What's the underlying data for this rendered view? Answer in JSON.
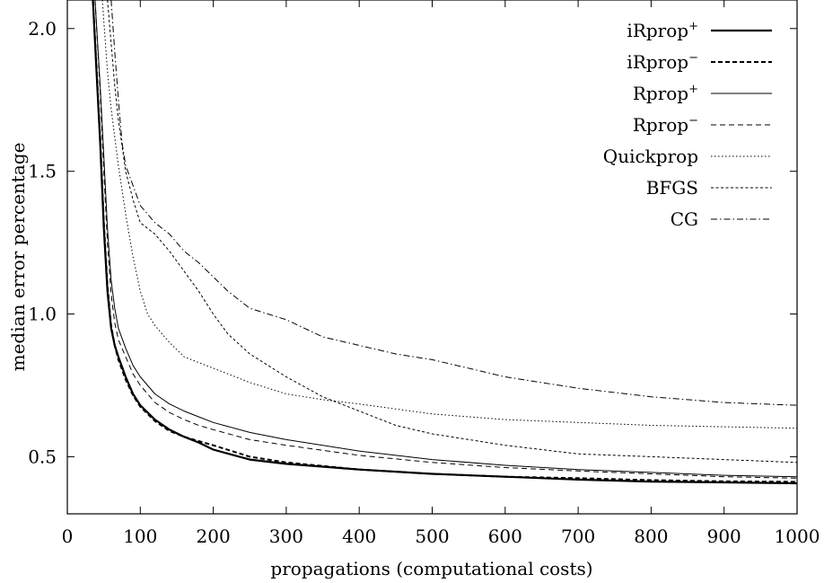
{
  "chart_data": {
    "type": "line",
    "title": "",
    "xlabel": "propagations (computational costs)",
    "ylabel": "median error percentage",
    "xlim": [
      0,
      1000
    ],
    "ylim": [
      0.3,
      2.1
    ],
    "xticks": [
      0,
      100,
      200,
      300,
      400,
      500,
      600,
      700,
      800,
      900,
      1000
    ],
    "xtick_labels": [
      "0",
      "100",
      "200",
      "300",
      "400",
      "500",
      "600",
      "700",
      "800",
      "900",
      "1000"
    ],
    "yticks": [
      0.5,
      1.0,
      1.5,
      2.0
    ],
    "ytick_labels": [
      "0.5",
      "1.0",
      "1.5",
      "2.0"
    ],
    "grid": false,
    "legend_position": "top-right",
    "series": [
      {
        "name": "iRprop",
        "name_sup": "+",
        "style": "solid-thick",
        "x": [
          35,
          40,
          45,
          50,
          55,
          60,
          65,
          70,
          80,
          90,
          100,
          120,
          140,
          160,
          180,
          200,
          250,
          300,
          400,
          500,
          600,
          700,
          800,
          900,
          1000
        ],
        "y": [
          2.1,
          1.85,
          1.6,
          1.3,
          1.08,
          0.95,
          0.89,
          0.85,
          0.78,
          0.72,
          0.68,
          0.63,
          0.595,
          0.57,
          0.55,
          0.525,
          0.49,
          0.475,
          0.455,
          0.44,
          0.43,
          0.42,
          0.413,
          0.41,
          0.407
        ]
      },
      {
        "name": "iRprop",
        "name_sup": "−",
        "style": "dashed-thick",
        "x": [
          35,
          40,
          45,
          50,
          55,
          60,
          65,
          70,
          80,
          90,
          100,
          120,
          140,
          160,
          180,
          200,
          250,
          300,
          400,
          500,
          600,
          700,
          800,
          900,
          1000
        ],
        "y": [
          2.1,
          1.87,
          1.62,
          1.32,
          1.1,
          0.96,
          0.89,
          0.84,
          0.77,
          0.715,
          0.675,
          0.625,
          0.59,
          0.57,
          0.555,
          0.54,
          0.5,
          0.48,
          0.455,
          0.44,
          0.43,
          0.425,
          0.418,
          0.414,
          0.412
        ]
      },
      {
        "name": "Rprop",
        "name_sup": "+",
        "style": "solid-thin",
        "x": [
          38,
          45,
          50,
          55,
          60,
          65,
          70,
          80,
          90,
          100,
          120,
          140,
          160,
          180,
          200,
          250,
          300,
          400,
          500,
          600,
          700,
          800,
          900,
          1000
        ],
        "y": [
          2.1,
          1.8,
          1.55,
          1.3,
          1.12,
          1.02,
          0.95,
          0.88,
          0.82,
          0.78,
          0.72,
          0.685,
          0.66,
          0.64,
          0.62,
          0.585,
          0.56,
          0.52,
          0.49,
          0.47,
          0.455,
          0.445,
          0.435,
          0.43
        ]
      },
      {
        "name": "Rprop",
        "name_sup": "−",
        "style": "dashed-thin",
        "x": [
          38,
          45,
          50,
          55,
          60,
          65,
          70,
          80,
          90,
          100,
          120,
          140,
          160,
          180,
          200,
          250,
          300,
          400,
          500,
          600,
          700,
          800,
          900,
          1000
        ],
        "y": [
          2.1,
          1.78,
          1.5,
          1.25,
          1.07,
          0.97,
          0.91,
          0.85,
          0.79,
          0.75,
          0.69,
          0.655,
          0.63,
          0.61,
          0.595,
          0.56,
          0.54,
          0.505,
          0.48,
          0.462,
          0.45,
          0.44,
          0.43,
          0.425
        ]
      },
      {
        "name": "Quickprop",
        "name_sup": "",
        "style": "dotted",
        "x": [
          48,
          55,
          60,
          65,
          70,
          80,
          90,
          100,
          110,
          120,
          140,
          160,
          180,
          200,
          250,
          300,
          350,
          400,
          500,
          600,
          700,
          800,
          900,
          1000
        ],
        "y": [
          2.1,
          1.85,
          1.72,
          1.62,
          1.52,
          1.35,
          1.2,
          1.08,
          1.0,
          0.96,
          0.9,
          0.85,
          0.83,
          0.81,
          0.76,
          0.72,
          0.7,
          0.685,
          0.65,
          0.63,
          0.62,
          0.61,
          0.605,
          0.6
        ]
      },
      {
        "name": "BFGS",
        "name_sup": "",
        "style": "short-dashed",
        "x": [
          55,
          60,
          65,
          70,
          80,
          90,
          100,
          120,
          140,
          160,
          180,
          200,
          220,
          250,
          300,
          350,
          400,
          450,
          500,
          600,
          700,
          800,
          900,
          1000
        ],
        "y": [
          2.1,
          1.95,
          1.8,
          1.68,
          1.5,
          1.4,
          1.32,
          1.28,
          1.22,
          1.15,
          1.08,
          1.0,
          0.93,
          0.86,
          0.78,
          0.71,
          0.66,
          0.61,
          0.58,
          0.54,
          0.51,
          0.5,
          0.49,
          0.48
        ]
      },
      {
        "name": "CG",
        "name_sup": "",
        "style": "dash-dot",
        "x": [
          60,
          65,
          70,
          75,
          80,
          90,
          100,
          120,
          140,
          160,
          180,
          200,
          220,
          250,
          300,
          350,
          400,
          450,
          500,
          600,
          700,
          800,
          900,
          1000
        ],
        "y": [
          2.1,
          1.92,
          1.75,
          1.6,
          1.52,
          1.45,
          1.38,
          1.32,
          1.28,
          1.22,
          1.18,
          1.13,
          1.08,
          1.02,
          0.98,
          0.92,
          0.89,
          0.86,
          0.84,
          0.78,
          0.74,
          0.71,
          0.69,
          0.68
        ]
      }
    ]
  }
}
